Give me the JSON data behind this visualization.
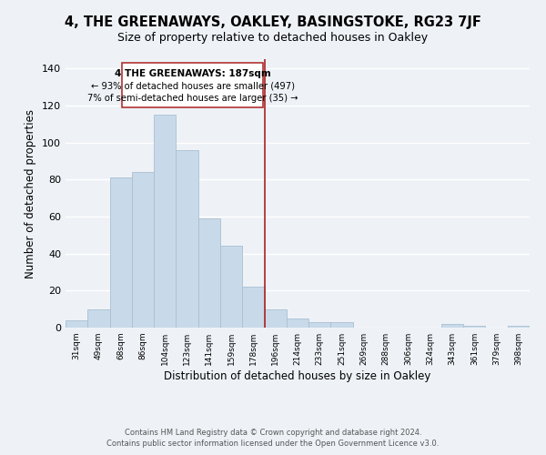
{
  "title1": "4, THE GREENAWAYS, OAKLEY, BASINGSTOKE, RG23 7JF",
  "title2": "Size of property relative to detached houses in Oakley",
  "xlabel": "Distribution of detached houses by size in Oakley",
  "ylabel": "Number of detached properties",
  "footer1": "Contains HM Land Registry data © Crown copyright and database right 2024.",
  "footer2": "Contains public sector information licensed under the Open Government Licence v3.0.",
  "bin_labels": [
    "31sqm",
    "49sqm",
    "68sqm",
    "86sqm",
    "104sqm",
    "123sqm",
    "141sqm",
    "159sqm",
    "178sqm",
    "196sqm",
    "214sqm",
    "233sqm",
    "251sqm",
    "269sqm",
    "288sqm",
    "306sqm",
    "324sqm",
    "343sqm",
    "361sqm",
    "379sqm",
    "398sqm"
  ],
  "bar_heights": [
    4,
    10,
    81,
    84,
    115,
    96,
    59,
    44,
    22,
    10,
    5,
    3,
    3,
    0,
    0,
    0,
    0,
    2,
    1,
    0,
    1
  ],
  "bar_color": "#c8daea",
  "bar_edge_color": "#aabfd0",
  "property_line_label": "4 THE GREENAWAYS: 187sqm",
  "annotation_smaller": "← 93% of detached houses are smaller (497)",
  "annotation_larger": "7% of semi-detached houses are larger (35) →",
  "vline_color": "#aa2222",
  "box_edge_color": "#aa2222",
  "ylim": [
    0,
    145
  ],
  "yticks": [
    0,
    20,
    40,
    60,
    80,
    100,
    120,
    140
  ],
  "background_color": "#eef2f7",
  "grid_color": "#ffffff",
  "title1_fontsize": 10.5,
  "title2_fontsize": 9,
  "bin_start_sqm": [
    31,
    49,
    68,
    86,
    104,
    123,
    141,
    159,
    178,
    196,
    214,
    233,
    251,
    269,
    288,
    306,
    324,
    343,
    361,
    379,
    398
  ],
  "property_sqm": 187
}
